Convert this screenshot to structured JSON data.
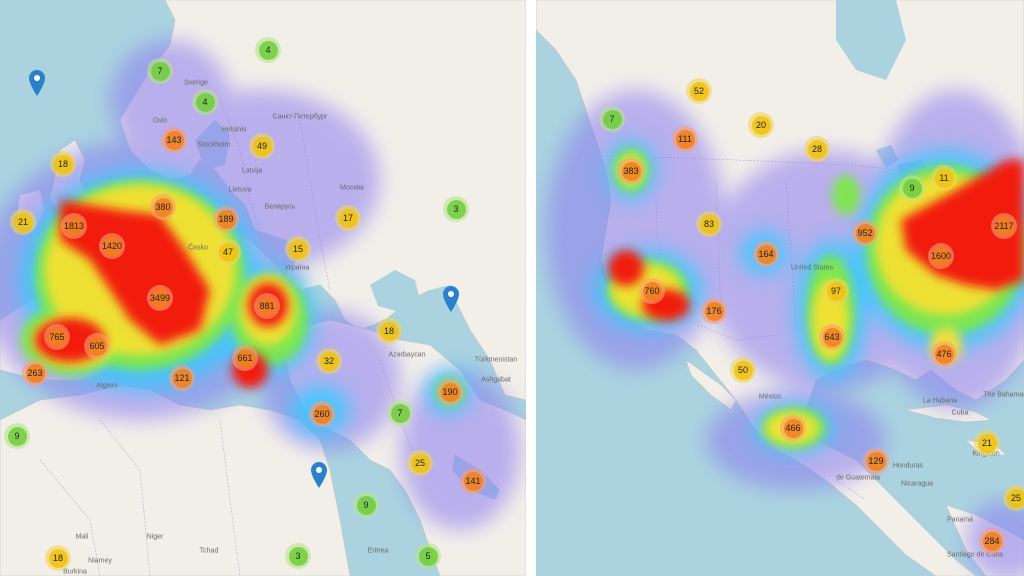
{
  "left_map": {
    "clusters": [
      {
        "label": "4",
        "size": "s"
      },
      {
        "label": "7",
        "size": "s"
      },
      {
        "label": "4",
        "size": "s"
      },
      {
        "label": "143",
        "size": "l"
      },
      {
        "label": "49",
        "size": "m"
      },
      {
        "label": "18",
        "size": "m"
      },
      {
        "label": "380",
        "size": "l"
      },
      {
        "label": "21",
        "size": "m"
      },
      {
        "label": "1813",
        "size": "l"
      },
      {
        "label": "189",
        "size": "l"
      },
      {
        "label": "17",
        "size": "m"
      },
      {
        "label": "3",
        "size": "s"
      },
      {
        "label": "1420",
        "size": "l"
      },
      {
        "label": "47",
        "size": "m"
      },
      {
        "label": "15",
        "size": "m"
      },
      {
        "label": "3499",
        "size": "l"
      },
      {
        "label": "881",
        "size": "l"
      },
      {
        "label": "765",
        "size": "l"
      },
      {
        "label": "605",
        "size": "l"
      },
      {
        "label": "18",
        "size": "m"
      },
      {
        "label": "661",
        "size": "l"
      },
      {
        "label": "32",
        "size": "m"
      },
      {
        "label": "263",
        "size": "l"
      },
      {
        "label": "121",
        "size": "l"
      },
      {
        "label": "190",
        "size": "l"
      },
      {
        "label": "260",
        "size": "l"
      },
      {
        "label": "7",
        "size": "s"
      },
      {
        "label": "9",
        "size": "s"
      },
      {
        "label": "25",
        "size": "m"
      },
      {
        "label": "141",
        "size": "l"
      },
      {
        "label": "9",
        "size": "s"
      },
      {
        "label": "18",
        "size": "m"
      },
      {
        "label": "3",
        "size": "s"
      },
      {
        "label": "5",
        "size": "s"
      }
    ],
    "place_labels": [
      "Sverige",
      "Oslo",
      "Helsinki",
      "Санкт-Петербург",
      "Stockholm",
      "Latvija",
      "Lietuva",
      "Москва",
      "Беларусь",
      "Česko",
      "Україна",
      "Algiers",
      "Azərbaycan",
      "Türkmenistan",
      "Ashgabat",
      "Mali",
      "Niger",
      "Niamey",
      "Burkina",
      "Tchad",
      "Eritrea"
    ]
  },
  "right_map": {
    "clusters": [
      {
        "label": "52",
        "size": "m"
      },
      {
        "label": "7",
        "size": "s"
      },
      {
        "label": "20",
        "size": "m"
      },
      {
        "label": "111",
        "size": "l"
      },
      {
        "label": "28",
        "size": "m"
      },
      {
        "label": "383",
        "size": "l"
      },
      {
        "label": "9",
        "size": "s"
      },
      {
        "label": "11",
        "size": "m"
      },
      {
        "label": "83",
        "size": "m"
      },
      {
        "label": "2117",
        "size": "l"
      },
      {
        "label": "952",
        "size": "l"
      },
      {
        "label": "164",
        "size": "l"
      },
      {
        "label": "1600",
        "size": "l"
      },
      {
        "label": "760",
        "size": "l"
      },
      {
        "label": "97",
        "size": "m"
      },
      {
        "label": "176",
        "size": "l"
      },
      {
        "label": "643",
        "size": "l"
      },
      {
        "label": "476",
        "size": "l"
      },
      {
        "label": "50",
        "size": "m"
      },
      {
        "label": "466",
        "size": "l"
      },
      {
        "label": "21",
        "size": "m"
      },
      {
        "label": "129",
        "size": "l"
      },
      {
        "label": "25",
        "size": "m"
      },
      {
        "label": "284",
        "size": "l"
      }
    ],
    "place_labels": [
      "United States",
      "México",
      "La Habana",
      "Cuba",
      "The Bahamas",
      "Honduras",
      "Nicaragua",
      "Panamá",
      "Kingston",
      "Santiago de Cuba",
      "de Guatemala"
    ]
  },
  "colors": {
    "water": "#aad3df",
    "land": "#f2efe9",
    "small_cluster": "#6ecc39",
    "medium_cluster": "#f0c20c",
    "large_cluster": "#f18017",
    "marker": "#2a81cb"
  }
}
